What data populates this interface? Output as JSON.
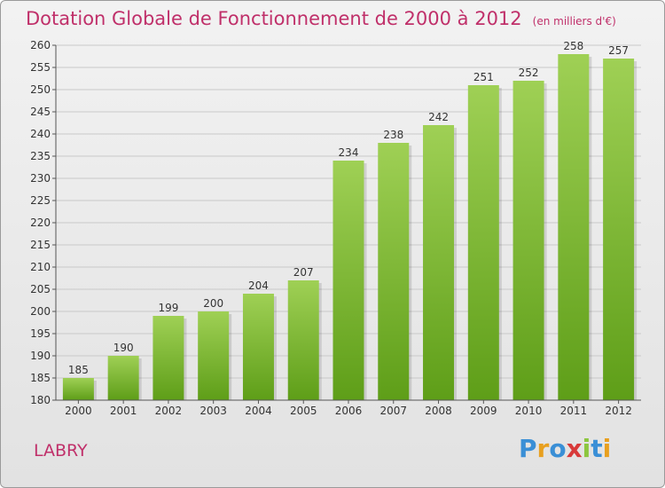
{
  "title": {
    "main": "Dotation Globale de Fonctionnement de 2000 à 2012",
    "unit": "(en milliers d'€)"
  },
  "place_label": "LABRY",
  "logo": {
    "text": "Proxiti",
    "letters": [
      {
        "ch": "P",
        "color": "#3a8fd6"
      },
      {
        "ch": "r",
        "color": "#e8a020"
      },
      {
        "ch": "o",
        "color": "#3a8fd6"
      },
      {
        "ch": "x",
        "color": "#d83a3a"
      },
      {
        "ch": "i",
        "color": "#8cc63f"
      },
      {
        "ch": "t",
        "color": "#3a8fd6"
      },
      {
        "ch": "i",
        "color": "#e8a020"
      }
    ]
  },
  "colors": {
    "bar_top": "#9fd055",
    "bar_bottom": "#5e9e18",
    "grid": "#c9c9c9",
    "text": "#333333",
    "accent": "#c0306a"
  },
  "chart_data": {
    "type": "bar",
    "categories": [
      "2000",
      "2001",
      "2002",
      "2003",
      "2004",
      "2005",
      "2006",
      "2007",
      "2008",
      "2009",
      "2010",
      "2011",
      "2012"
    ],
    "values": [
      185,
      190,
      199,
      200,
      204,
      207,
      234,
      238,
      242,
      251,
      252,
      258,
      257
    ],
    "ylim": [
      180,
      260
    ],
    "ytick_step": 5,
    "grid": true,
    "data_labels": true
  }
}
